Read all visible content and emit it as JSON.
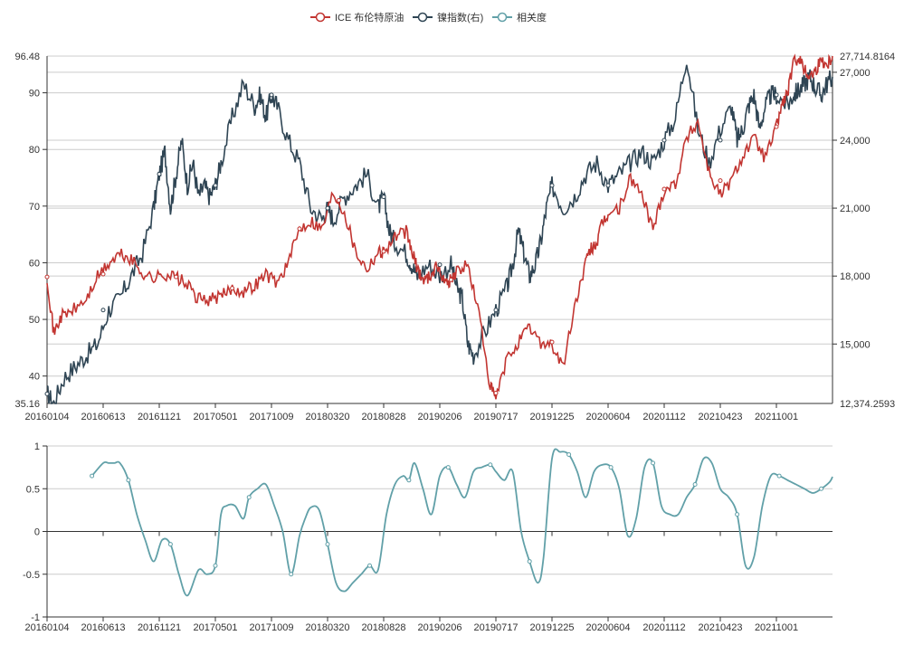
{
  "colors": {
    "brent": "#c23531",
    "nickel": "#2f4554",
    "corr": "#61a0a8",
    "axis": "#333333",
    "grid": "#cccccc",
    "text": "#333333"
  },
  "chart_data": [
    {
      "type": "line",
      "legend": {
        "position": "top-center",
        "items": [
          {
            "key": "brent",
            "label": "ICE 布伦特原油",
            "color": "#c23531"
          },
          {
            "key": "nickel",
            "label": "镍指数(右)",
            "color": "#2f4554"
          },
          {
            "key": "corr",
            "label": "相关度",
            "color": "#61a0a8"
          }
        ]
      },
      "x_tick_labels": [
        "20160104",
        "20160613",
        "20161121",
        "20170501",
        "20171009",
        "20180320",
        "20180828",
        "20190206",
        "20190717",
        "20191225",
        "20200604",
        "20201112",
        "20210423",
        "20211001"
      ],
      "x_range": [
        0,
        14
      ],
      "grid": true,
      "left_axis": {
        "min": 35.16,
        "max": 96.48,
        "ticks": [
          40,
          50,
          60,
          70,
          80,
          90
        ],
        "min_label": "35.16",
        "max_label": "96.48"
      },
      "right_axis": {
        "min": 12374.2593,
        "max": 27714.8164,
        "ticks": [
          15000,
          18000,
          21000,
          24000,
          27000
        ],
        "tick_labels": [
          "15,000",
          "18,000",
          "21,000",
          "24,000",
          "27,000"
        ],
        "min_label": "12,374.2593",
        "max_label": "27,714.8164"
      },
      "series": [
        {
          "name": "ICE 布伦特原油",
          "axis": "left",
          "x": [
            0,
            0.12,
            0.25,
            0.45,
            0.7,
            0.9,
            1.1,
            1.3,
            1.5,
            1.7,
            1.9,
            2.1,
            2.3,
            2.5,
            2.7,
            2.9,
            3.1,
            3.3,
            3.5,
            3.7,
            3.9,
            4.1,
            4.3,
            4.5,
            4.7,
            4.9,
            5.1,
            5.3,
            5.5,
            5.7,
            5.9,
            6.0,
            6.2,
            6.4,
            6.5,
            6.6,
            6.7,
            6.8,
            6.95,
            7.1,
            7.2,
            7.3,
            7.5,
            7.7,
            7.9,
            8.0,
            8.2,
            8.4,
            8.6,
            8.8,
            9.0,
            9.2,
            9.4,
            9.6,
            9.7,
            9.8,
            9.9,
            10.0,
            10.2,
            10.4,
            10.6,
            10.8,
            11.0,
            11.2,
            11.4,
            11.6,
            11.8,
            12.0,
            12.2,
            12.4,
            12.6,
            12.8,
            13.0,
            13.1,
            13.2,
            13.3,
            13.4,
            13.5,
            13.6,
            13.7,
            13.8,
            13.9,
            14.0
          ],
          "values": [
            57.5,
            47.5,
            50.5,
            51.5,
            53.5,
            57.5,
            59.8,
            61.5,
            60.5,
            58.2,
            57.2,
            58.0,
            57.5,
            56.0,
            53.5,
            53.5,
            54.0,
            55.5,
            55.0,
            56.0,
            58.0,
            56.5,
            60.0,
            66.0,
            67.5,
            66.0,
            72.5,
            69.0,
            62.0,
            59.0,
            62.0,
            62.0,
            64.5,
            65.5,
            62.0,
            59.0,
            57.0,
            57.5,
            59.5,
            56.5,
            57.0,
            58.5,
            59.5,
            51.0,
            38.0,
            36.0,
            43.0,
            46.0,
            48.5,
            46.0,
            45.5,
            41.5,
            52.0,
            60.0,
            62.5,
            63.5,
            67.0,
            68.5,
            69.5,
            75.0,
            72.0,
            66.0,
            73.0,
            74.0,
            82.0,
            85.0,
            76.0,
            72.0,
            74.5,
            79.0,
            82.0,
            78.5,
            84.0,
            88.0,
            90.0,
            95.0,
            96.48,
            94.0,
            93.0,
            94.0,
            96.0,
            95.0,
            96.48
          ]
        },
        {
          "name": "镍指数(右)",
          "axis": "right",
          "x": [
            0,
            0.12,
            0.3,
            0.5,
            0.7,
            0.9,
            1.1,
            1.3,
            1.5,
            1.7,
            1.9,
            2.0,
            2.1,
            2.2,
            2.3,
            2.4,
            2.5,
            2.6,
            2.7,
            2.8,
            2.9,
            3.0,
            3.1,
            3.3,
            3.5,
            3.7,
            3.8,
            3.9,
            4.0,
            4.1,
            4.3,
            4.5,
            4.7,
            4.9,
            5.0,
            5.1,
            5.3,
            5.5,
            5.7,
            5.9,
            6.0,
            6.1,
            6.2,
            6.4,
            6.5,
            6.6,
            6.8,
            7.0,
            7.2,
            7.3,
            7.4,
            7.5,
            7.6,
            7.8,
            8.0,
            8.2,
            8.3,
            8.4,
            8.5,
            8.6,
            8.7,
            8.8,
            8.9,
            9.0,
            9.2,
            9.4,
            9.6,
            9.8,
            10.0,
            10.2,
            10.4,
            10.6,
            10.8,
            11.0,
            11.2,
            11.4,
            11.6,
            11.8,
            12.0,
            12.2,
            12.3,
            12.4,
            12.5,
            12.6,
            12.7,
            12.8,
            12.9,
            13.0,
            13.2,
            13.3,
            13.4,
            13.5,
            13.6,
            13.7,
            13.8,
            13.9,
            14.0
          ],
          "values": [
            12800,
            12374,
            13500,
            14000,
            14500,
            15000,
            16500,
            17000,
            18000,
            19000,
            21000,
            22500,
            23500,
            21000,
            22500,
            24000,
            22000,
            23000,
            21500,
            22000,
            21500,
            22000,
            23000,
            25000,
            26500,
            25500,
            26000,
            25000,
            26000,
            25500,
            24000,
            23000,
            21000,
            20500,
            21000,
            20500,
            21500,
            22000,
            22500,
            21000,
            21500,
            20000,
            19500,
            19000,
            18500,
            18000,
            18500,
            18000,
            18500,
            17500,
            17000,
            15000,
            14500,
            15500,
            16500,
            17500,
            18500,
            20000,
            19000,
            18000,
            18500,
            19500,
            21000,
            22000,
            21000,
            21500,
            22500,
            23000,
            22000,
            22500,
            23000,
            23500,
            23000,
            24000,
            25000,
            27714,
            24500,
            23000,
            24500,
            25500,
            24000,
            24500,
            25500,
            26000,
            24500,
            25500,
            26000,
            26000,
            25500,
            26000,
            26200,
            26500,
            26800,
            26300,
            26000,
            26500,
            26800
          ]
        }
      ]
    },
    {
      "type": "line",
      "x_tick_labels": [
        "20160104",
        "20160613",
        "20161121",
        "20170501",
        "20171009",
        "20180320",
        "20180828",
        "20190206",
        "20190717",
        "20191225",
        "20200604",
        "20201112",
        "20210423",
        "20211001"
      ],
      "x_range": [
        0,
        14
      ],
      "grid": true,
      "y_axis": {
        "min": -1,
        "max": 1,
        "ticks": [
          -1,
          -0.5,
          0,
          0.5,
          1
        ],
        "tick_labels": [
          "-1",
          "-0.5",
          "0",
          "0.5",
          "1"
        ]
      },
      "series": [
        {
          "name": "相关度",
          "x": [
            0.8,
            1.0,
            1.1,
            1.2,
            1.3,
            1.45,
            1.6,
            1.75,
            1.9,
            2.05,
            2.2,
            2.35,
            2.5,
            2.7,
            2.85,
            3.0,
            3.1,
            3.2,
            3.35,
            3.5,
            3.6,
            3.75,
            3.9,
            4.05,
            4.2,
            4.35,
            4.5,
            4.6,
            4.7,
            4.85,
            5.0,
            5.15,
            5.3,
            5.45,
            5.6,
            5.75,
            5.9,
            6.05,
            6.2,
            6.35,
            6.45,
            6.55,
            6.7,
            6.85,
            7.0,
            7.15,
            7.3,
            7.45,
            7.6,
            7.75,
            7.9,
            8.0,
            8.15,
            8.3,
            8.45,
            8.6,
            8.75,
            8.85,
            9.0,
            9.15,
            9.3,
            9.45,
            9.6,
            9.75,
            9.9,
            10.05,
            10.2,
            10.35,
            10.5,
            10.65,
            10.8,
            10.95,
            11.1,
            11.25,
            11.4,
            11.55,
            11.7,
            11.85,
            12.0,
            12.15,
            12.3,
            12.45,
            12.6,
            12.75,
            12.9,
            13.05,
            13.2,
            13.35,
            13.5,
            13.65,
            13.8,
            13.95,
            14.0
          ],
          "values": [
            0.65,
            0.8,
            0.8,
            0.8,
            0.8,
            0.6,
            0.2,
            -0.1,
            -0.35,
            -0.1,
            -0.15,
            -0.5,
            -0.75,
            -0.45,
            -0.5,
            -0.4,
            0.2,
            0.3,
            0.3,
            0.15,
            0.4,
            0.5,
            0.55,
            0.3,
            0.0,
            -0.5,
            -0.05,
            0.15,
            0.28,
            0.25,
            -0.15,
            -0.6,
            -0.7,
            -0.6,
            -0.5,
            -0.4,
            -0.45,
            0.2,
            0.55,
            0.65,
            0.6,
            0.8,
            0.5,
            0.2,
            0.65,
            0.75,
            0.55,
            0.4,
            0.7,
            0.75,
            0.78,
            0.7,
            0.6,
            0.7,
            0.0,
            -0.35,
            -0.6,
            -0.3,
            0.85,
            0.93,
            0.9,
            0.7,
            0.4,
            0.7,
            0.78,
            0.75,
            0.5,
            -0.05,
            0.15,
            0.75,
            0.8,
            0.3,
            0.2,
            0.2,
            0.4,
            0.55,
            0.85,
            0.8,
            0.5,
            0.4,
            0.2,
            -0.4,
            -0.3,
            0.3,
            0.65,
            0.65,
            0.6,
            0.55,
            0.5,
            0.45,
            0.5,
            0.58,
            0.64
          ]
        }
      ]
    }
  ]
}
